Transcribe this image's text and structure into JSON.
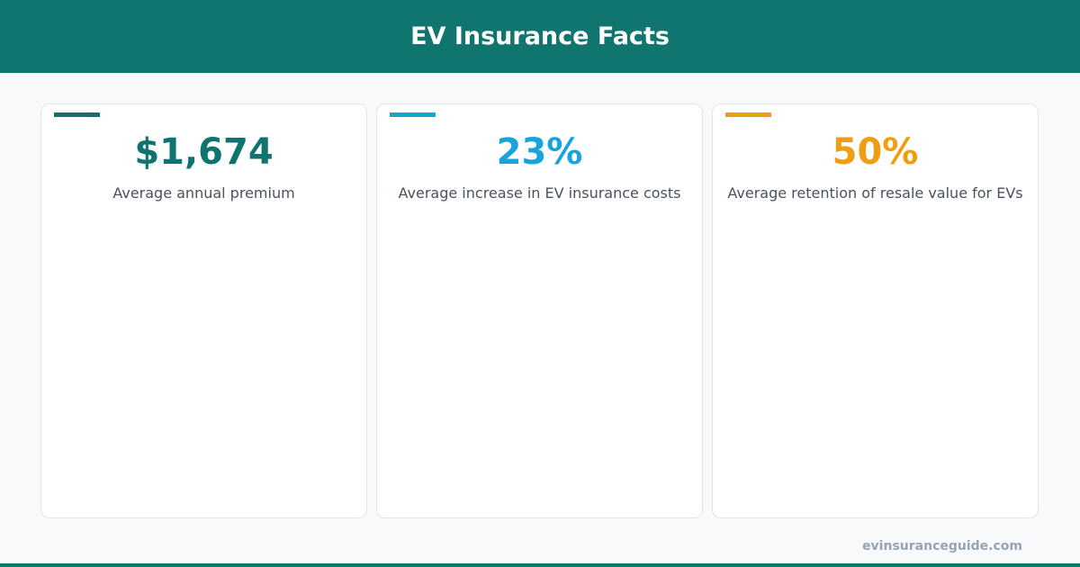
{
  "header": {
    "title": "EV Insurance Facts"
  },
  "cards": [
    {
      "value": "$1,674",
      "label": "Average annual premium",
      "color": "#0f7470"
    },
    {
      "value": "23%",
      "label": "Average increase in EV insurance costs",
      "color": "#19a3dc"
    },
    {
      "value": "50%",
      "label": "Average retention of resale value for EVs",
      "color": "#f09e0f"
    }
  ],
  "footer": {
    "site": "evinsuranceguide.com"
  }
}
